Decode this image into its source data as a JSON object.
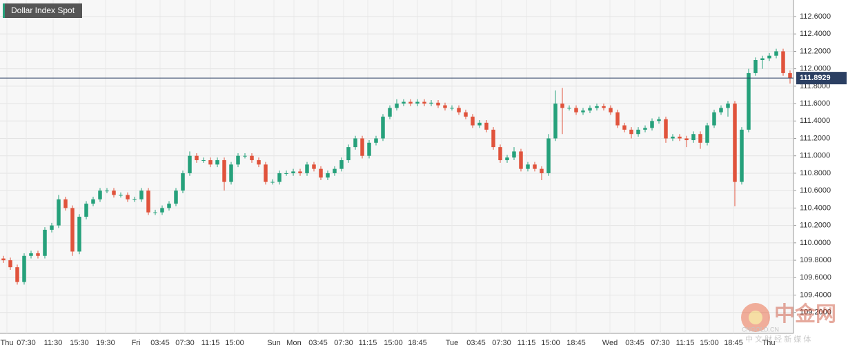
{
  "chart_data": {
    "type": "candlestick",
    "title": "Dollar Index Spot",
    "open": [
      109.82,
      109.8,
      109.72,
      109.55,
      109.85,
      109.88,
      109.85,
      110.15,
      110.2,
      110.5,
      110.4,
      109.9,
      110.3,
      110.45,
      110.5,
      110.6,
      110.6,
      110.55,
      110.55,
      110.5,
      110.5,
      110.6,
      110.35,
      110.35,
      110.4,
      110.45,
      110.6,
      110.8,
      111.0,
      110.95,
      110.95,
      110.9,
      110.95,
      110.7,
      110.9,
      111.0,
      111.0,
      110.95,
      110.9,
      110.7,
      110.7,
      110.8,
      110.8,
      110.82,
      110.8,
      110.9,
      110.85,
      110.75,
      110.8,
      110.85,
      110.95,
      111.1,
      111.2,
      111.0,
      111.15,
      111.2,
      111.45,
      111.55,
      111.6,
      111.62,
      111.6,
      111.62,
      111.6,
      111.61,
      111.58,
      111.55,
      111.55,
      111.5,
      111.45,
      111.35,
      111.38,
      111.3,
      111.1,
      110.95,
      110.98,
      111.05,
      110.85,
      110.9,
      110.85,
      110.8,
      111.2,
      111.6,
      111.55,
      111.55,
      111.5,
      111.52,
      111.55,
      111.57,
      111.55,
      111.5,
      111.35,
      111.3,
      111.25,
      111.3,
      111.32,
      111.4,
      111.42,
      111.2,
      111.22,
      111.2,
      111.18,
      111.25,
      111.15,
      111.35,
      111.5,
      111.55,
      111.6,
      110.7,
      111.3,
      111.95,
      112.1,
      112.12,
      112.15,
      112.2,
      111.95
    ],
    "high": [
      109.85,
      109.83,
      109.75,
      109.88,
      109.91,
      109.91,
      110.18,
      110.23,
      110.55,
      110.53,
      110.43,
      110.33,
      110.48,
      110.53,
      110.63,
      110.63,
      110.63,
      110.58,
      110.58,
      110.53,
      110.63,
      110.63,
      110.38,
      110.43,
      110.48,
      110.63,
      110.83,
      111.05,
      111.03,
      110.98,
      110.98,
      110.98,
      110.98,
      110.93,
      111.03,
      111.03,
      111.03,
      110.98,
      110.93,
      110.73,
      110.83,
      110.83,
      110.85,
      110.85,
      110.93,
      110.93,
      110.88,
      110.83,
      110.88,
      110.98,
      111.13,
      111.23,
      111.23,
      111.18,
      111.23,
      111.48,
      111.58,
      111.65,
      111.65,
      111.65,
      111.65,
      111.65,
      111.64,
      111.64,
      111.61,
      111.58,
      111.58,
      111.53,
      111.48,
      111.41,
      111.41,
      111.33,
      111.13,
      111.01,
      111.1,
      111.08,
      110.93,
      110.93,
      110.88,
      111.25,
      111.75,
      111.78,
      111.58,
      111.58,
      111.55,
      111.58,
      111.6,
      111.6,
      111.58,
      111.53,
      111.38,
      111.33,
      111.33,
      111.35,
      111.43,
      111.45,
      111.45,
      111.25,
      111.25,
      111.23,
      111.28,
      111.28,
      111.38,
      111.53,
      111.58,
      111.63,
      111.63,
      111.33,
      112.0,
      112.13,
      112.15,
      112.18,
      112.23,
      112.23,
      111.98
    ],
    "low": [
      109.77,
      109.69,
      109.52,
      109.52,
      109.82,
      109.82,
      109.82,
      110.12,
      110.17,
      110.37,
      109.85,
      109.87,
      110.27,
      110.42,
      110.47,
      110.57,
      110.52,
      110.52,
      110.47,
      110.47,
      110.47,
      110.32,
      110.32,
      110.32,
      110.37,
      110.42,
      110.57,
      110.77,
      110.92,
      110.92,
      110.87,
      110.87,
      110.6,
      110.67,
      110.87,
      110.97,
      110.92,
      110.87,
      110.67,
      110.67,
      110.67,
      110.77,
      110.77,
      110.77,
      110.77,
      110.82,
      110.72,
      110.72,
      110.77,
      110.82,
      110.92,
      111.07,
      110.97,
      110.97,
      111.12,
      111.17,
      111.42,
      111.52,
      111.57,
      111.57,
      111.57,
      111.57,
      111.57,
      111.55,
      111.52,
      111.52,
      111.47,
      111.42,
      111.32,
      111.32,
      111.27,
      111.07,
      110.92,
      110.92,
      110.95,
      110.82,
      110.82,
      110.82,
      110.72,
      110.77,
      111.17,
      111.25,
      111.52,
      111.47,
      111.47,
      111.49,
      111.52,
      111.52,
      111.47,
      111.32,
      111.27,
      111.2,
      111.22,
      111.27,
      111.29,
      111.37,
      111.15,
      111.17,
      111.17,
      111.1,
      111.15,
      111.08,
      111.12,
      111.32,
      111.47,
      111.45,
      110.42,
      110.67,
      111.27,
      111.92,
      112.0,
      112.09,
      112.12,
      111.92,
      111.83
    ],
    "close": [
      109.8,
      109.72,
      109.55,
      109.85,
      109.88,
      109.85,
      110.15,
      110.2,
      110.5,
      110.4,
      109.9,
      110.3,
      110.45,
      110.5,
      110.6,
      110.6,
      110.55,
      110.55,
      110.5,
      110.5,
      110.6,
      110.35,
      110.35,
      110.4,
      110.45,
      110.6,
      110.8,
      111.0,
      110.95,
      110.95,
      110.9,
      110.95,
      110.7,
      110.9,
      111.0,
      111.0,
      110.95,
      110.9,
      110.7,
      110.7,
      110.8,
      110.8,
      110.82,
      110.8,
      110.9,
      110.85,
      110.75,
      110.8,
      110.85,
      110.95,
      111.1,
      111.2,
      111.0,
      111.15,
      111.2,
      111.45,
      111.55,
      111.6,
      111.62,
      111.6,
      111.62,
      111.6,
      111.61,
      111.58,
      111.55,
      111.55,
      111.5,
      111.45,
      111.35,
      111.38,
      111.3,
      111.1,
      110.95,
      110.98,
      111.05,
      110.85,
      110.9,
      110.85,
      110.8,
      111.2,
      111.6,
      111.55,
      111.55,
      111.5,
      111.52,
      111.55,
      111.57,
      111.55,
      111.5,
      111.35,
      111.3,
      111.25,
      111.3,
      111.32,
      111.4,
      111.42,
      111.2,
      111.22,
      111.2,
      111.18,
      111.25,
      111.15,
      111.35,
      111.5,
      111.55,
      111.6,
      110.7,
      111.3,
      111.95,
      112.1,
      112.12,
      112.15,
      112.2,
      111.95,
      111.89
    ],
    "up_color": "#26a17b",
    "down_color": "#e0533c",
    "xlim": [
      -0.5,
      114.5
    ],
    "xticks": [
      {
        "value": 0.5,
        "label": "Thu"
      },
      {
        "value": 3.3,
        "label": "07:30"
      },
      {
        "value": 7.2,
        "label": "11:30"
      },
      {
        "value": 11,
        "label": "15:30"
      },
      {
        "value": 14.8,
        "label": "19:30"
      },
      {
        "value": 19.2,
        "label": "Fri"
      },
      {
        "value": 22.7,
        "label": "03:45"
      },
      {
        "value": 26.3,
        "label": "07:30"
      },
      {
        "value": 30,
        "label": "11:15"
      },
      {
        "value": 33.5,
        "label": "15:00"
      },
      {
        "value": 39.2,
        "label": "Sun"
      },
      {
        "value": 42.1,
        "label": "Mon"
      },
      {
        "value": 45.6,
        "label": "03:45"
      },
      {
        "value": 49.3,
        "label": "07:30"
      },
      {
        "value": 52.8,
        "label": "11:15"
      },
      {
        "value": 56.5,
        "label": "15:00"
      },
      {
        "value": 60,
        "label": "18:45"
      },
      {
        "value": 65,
        "label": "Tue"
      },
      {
        "value": 68.5,
        "label": "03:45"
      },
      {
        "value": 72.2,
        "label": "07:30"
      },
      {
        "value": 75.8,
        "label": "11:15"
      },
      {
        "value": 79.3,
        "label": "15:00"
      },
      {
        "value": 83,
        "label": "18:45"
      },
      {
        "value": 87.9,
        "label": "Wed"
      },
      {
        "value": 91.5,
        "label": "03:45"
      },
      {
        "value": 95.2,
        "label": "07:30"
      },
      {
        "value": 98.8,
        "label": "11:15"
      },
      {
        "value": 102.3,
        "label": "15:00"
      },
      {
        "value": 105.8,
        "label": "18:45"
      },
      {
        "value": 110.9,
        "label": "Thu"
      }
    ],
    "ylim": [
      108.96,
      112.79
    ],
    "yticks": [
      {
        "value": 109.2,
        "label": "109.2000"
      },
      {
        "value": 109.4,
        "label": "109.4000"
      },
      {
        "value": 109.6,
        "label": "109.6000"
      },
      {
        "value": 109.8,
        "label": "109.8000"
      },
      {
        "value": 110,
        "label": "110.0000"
      },
      {
        "value": 110.2,
        "label": "110.2000"
      },
      {
        "value": 110.4,
        "label": "110.4000"
      },
      {
        "value": 110.6,
        "label": "110.6000"
      },
      {
        "value": 110.8,
        "label": "110.8000"
      },
      {
        "value": 111,
        "label": "111.0000"
      },
      {
        "value": 111.2,
        "label": "111.2000"
      },
      {
        "value": 111.4,
        "label": "111.4000"
      },
      {
        "value": 111.6,
        "label": "111.6000"
      },
      {
        "value": 111.8,
        "label": "111.8000"
      },
      {
        "value": 112,
        "label": "112.0000"
      },
      {
        "value": 112.2,
        "label": "112.2000"
      },
      {
        "value": 112.4,
        "label": "112.4000"
      },
      {
        "value": 112.6,
        "label": "112.6000"
      }
    ],
    "last_price": 111.8929,
    "last_price_color": "#2b3f62",
    "grid": true
  },
  "watermark": {
    "logo": "中金网",
    "site": "CNGOLD.CN",
    "tagline": "中 文 财 经 新 媒 体"
  }
}
